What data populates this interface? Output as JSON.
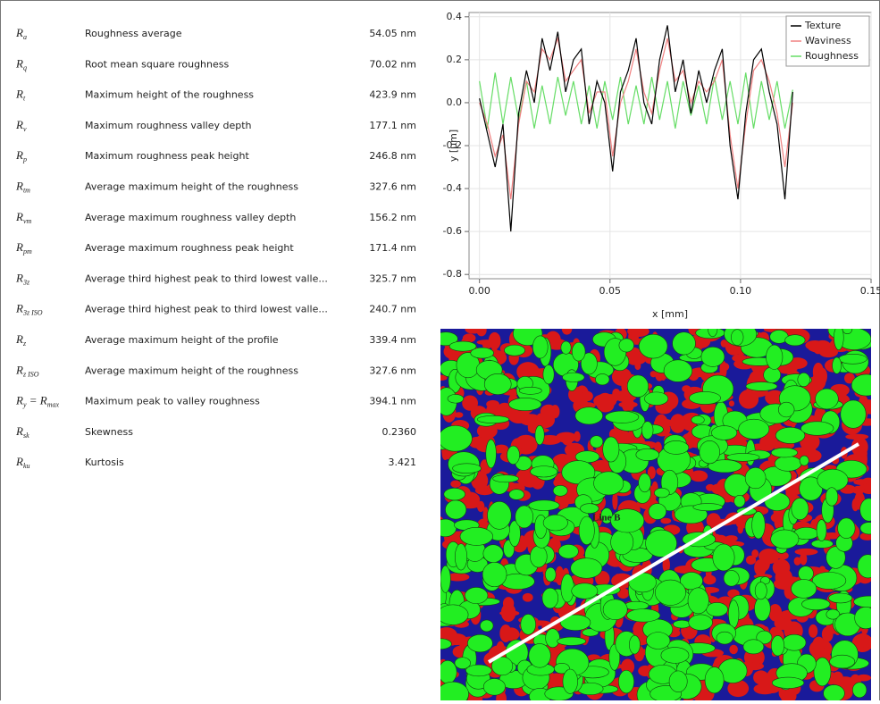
{
  "table": {
    "rows": [
      {
        "symbol": [
          "R",
          "a"
        ],
        "description": "Roughness average",
        "value": "54.05 nm"
      },
      {
        "symbol": [
          "R",
          "q"
        ],
        "description": "Root mean square roughness",
        "value": "70.02 nm"
      },
      {
        "symbol": [
          "R",
          "t"
        ],
        "description": "Maximum height of the roughness",
        "value": "423.9 nm"
      },
      {
        "symbol": [
          "R",
          "v"
        ],
        "description": "Maximum roughness valley depth",
        "value": "177.1 nm"
      },
      {
        "symbol": [
          "R",
          "p"
        ],
        "description": "Maximum roughness peak height",
        "value": "246.8 nm"
      },
      {
        "symbol": [
          "R",
          "tm"
        ],
        "description": "Average maximum height of the roughness",
        "value": "327.6 nm"
      },
      {
        "symbol": [
          "R",
          "vm"
        ],
        "description": "Average maximum roughness valley depth",
        "value": "156.2 nm"
      },
      {
        "symbol": [
          "R",
          "pm"
        ],
        "description": "Average maximum roughness peak height",
        "value": "171.4 nm"
      },
      {
        "symbol": [
          "R",
          "3z"
        ],
        "description": "Average third highest peak to third lowest valle...",
        "value": "325.7 nm"
      },
      {
        "symbol": [
          "R",
          "3z ISO"
        ],
        "description": "Average third highest peak to third lowest valle...",
        "value": "240.7 nm"
      },
      {
        "symbol": [
          "R",
          "z"
        ],
        "description": "Average maximum height of the profile",
        "value": "339.4 nm"
      },
      {
        "symbol": [
          "R",
          "z ISO"
        ],
        "description": "Average maximum height of the roughness",
        "value": "327.6 nm"
      },
      {
        "symbol": [
          "R",
          "y",
          " = R",
          "max"
        ],
        "description": "Maximum peak to valley roughness",
        "value": "394.1 nm"
      },
      {
        "symbol": [
          "R",
          "sk"
        ],
        "description": "Skewness",
        "value": "0.2360"
      },
      {
        "symbol": [
          "R",
          "ku"
        ],
        "description": "Kurtosis",
        "value": "3.421"
      }
    ]
  },
  "chart_data": {
    "type": "line",
    "xlabel": "x [mm]",
    "ylabel": "y [µm]",
    "xlim": [
      -0.004,
      0.15
    ],
    "ylim": [
      -0.82,
      0.42
    ],
    "xticks": [
      {
        "value": 0,
        "label": "0.00"
      },
      {
        "value": 0.05,
        "label": "0.05"
      },
      {
        "value": 0.1,
        "label": "0.10"
      },
      {
        "value": 0.15,
        "label": "0.15"
      }
    ],
    "yticks": [
      -0.8,
      -0.6,
      -0.4,
      -0.2,
      {
        "value": 0,
        "label": "0.0"
      },
      0.2,
      0.4
    ],
    "grid": true,
    "legend": "upper right",
    "x": [
      0,
      0.003,
      0.006,
      0.009,
      0.012,
      0.015,
      0.018,
      0.021,
      0.024,
      0.027,
      0.03,
      0.033,
      0.036,
      0.039,
      0.042,
      0.045,
      0.048,
      0.051,
      0.054,
      0.057,
      0.06,
      0.063,
      0.066,
      0.069,
      0.072,
      0.075,
      0.078,
      0.081,
      0.084,
      0.087,
      0.09,
      0.093,
      0.096,
      0.099,
      0.102,
      0.105,
      0.108,
      0.111,
      0.114,
      0.117,
      0.12
    ],
    "series": [
      {
        "name": "Texture",
        "color": "#000000",
        "values": [
          0.02,
          -0.14,
          -0.3,
          -0.1,
          -0.6,
          -0.05,
          0.15,
          0.0,
          0.3,
          0.15,
          0.33,
          0.05,
          0.2,
          0.25,
          -0.1,
          0.1,
          0.0,
          -0.32,
          0.05,
          0.15,
          0.3,
          0.0,
          -0.1,
          0.2,
          0.36,
          0.05,
          0.2,
          -0.05,
          0.15,
          0.0,
          0.15,
          0.25,
          -0.2,
          -0.45,
          -0.05,
          0.2,
          0.25,
          0.05,
          -0.1,
          -0.45,
          0.05
        ]
      },
      {
        "name": "Waviness",
        "color": "#f08080",
        "values": [
          0.0,
          -0.1,
          -0.25,
          -0.15,
          -0.45,
          -0.1,
          0.1,
          0.05,
          0.25,
          0.2,
          0.3,
          0.1,
          0.15,
          0.2,
          -0.05,
          0.05,
          0.05,
          -0.25,
          0.0,
          0.1,
          0.25,
          0.05,
          -0.05,
          0.15,
          0.3,
          0.1,
          0.15,
          0.0,
          0.1,
          0.05,
          0.1,
          0.2,
          -0.15,
          -0.4,
          -0.1,
          0.15,
          0.2,
          0.1,
          -0.05,
          -0.3,
          0.0
        ]
      },
      {
        "name": "Roughness",
        "color": "#66dd66",
        "values": [
          0.1,
          -0.12,
          0.14,
          -0.1,
          0.12,
          -0.08,
          0.1,
          -0.12,
          0.08,
          -0.1,
          0.12,
          -0.06,
          0.1,
          -0.1,
          0.08,
          -0.12,
          0.1,
          -0.08,
          0.12,
          -0.1,
          0.08,
          -0.1,
          0.12,
          -0.08,
          0.1,
          -0.12,
          0.1,
          -0.06,
          0.08,
          -0.1,
          0.12,
          -0.08,
          0.1,
          -0.1,
          0.14,
          -0.12,
          0.1,
          -0.08,
          0.1,
          -0.12,
          0.06
        ]
      }
    ]
  },
  "image": {
    "label": "Line B"
  }
}
